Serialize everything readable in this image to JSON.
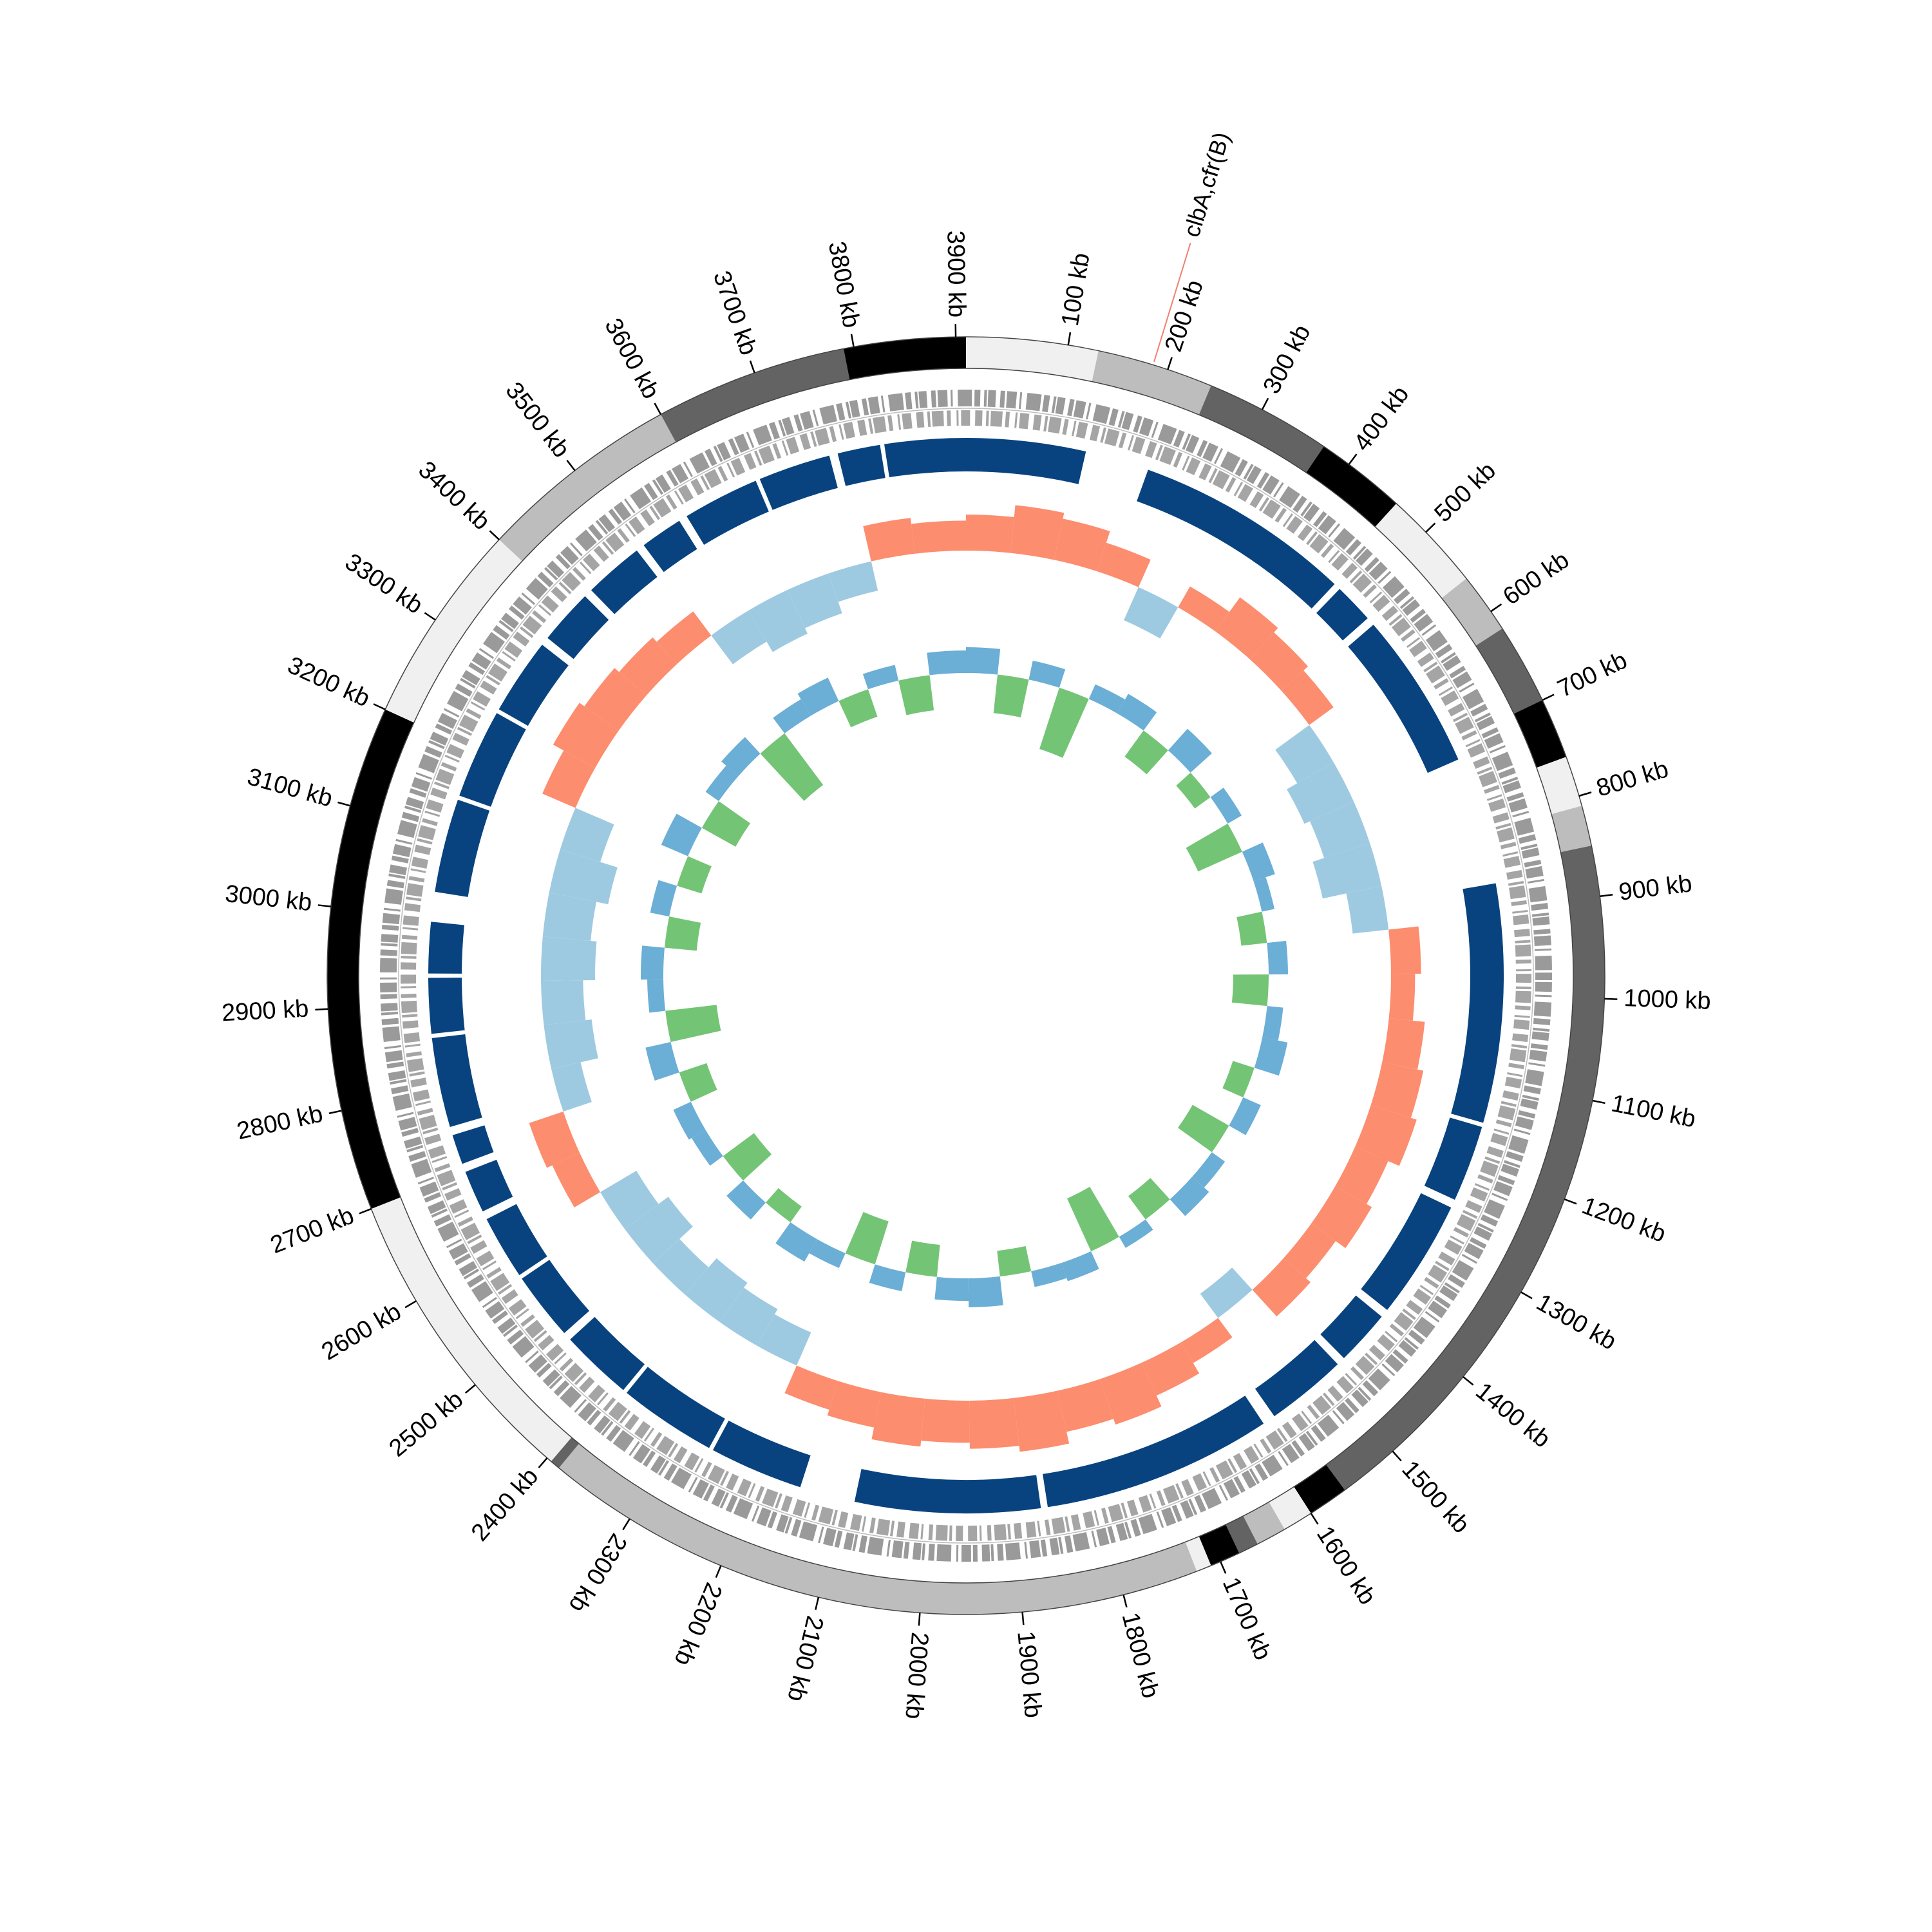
{
  "chart_data": {
    "type": "circular",
    "xlim": [
      0,
      3910
    ],
    "xticks": [
      {
        "value": 100,
        "label": "100 kb"
      },
      {
        "value": 200,
        "label": "200 kb"
      },
      {
        "value": 300,
        "label": "300 kb"
      },
      {
        "value": 400,
        "label": "400 kb"
      },
      {
        "value": 500,
        "label": "500 kb"
      },
      {
        "value": 600,
        "label": "600 kb"
      },
      {
        "value": 700,
        "label": "700 kb"
      },
      {
        "value": 800,
        "label": "800 kb"
      },
      {
        "value": 900,
        "label": "900 kb"
      },
      {
        "value": 1000,
        "label": "1000 kb"
      },
      {
        "value": 1100,
        "label": "1100 kb"
      },
      {
        "value": 1200,
        "label": "1200 kb"
      },
      {
        "value": 1300,
        "label": "1300 kb"
      },
      {
        "value": 1400,
        "label": "1400 kb"
      },
      {
        "value": 1500,
        "label": "1500 kb"
      },
      {
        "value": 1600,
        "label": "1600 kb"
      },
      {
        "value": 1700,
        "label": "1700 kb"
      },
      {
        "value": 1800,
        "label": "1800 kb"
      },
      {
        "value": 1900,
        "label": "1900 kb"
      },
      {
        "value": 2000,
        "label": "2000 kb"
      },
      {
        "value": 2100,
        "label": "2100 kb"
      },
      {
        "value": 2200,
        "label": "2200 kb"
      },
      {
        "value": 2300,
        "label": "2300 kb"
      },
      {
        "value": 2400,
        "label": "2400 kb"
      },
      {
        "value": 2500,
        "label": "2500 kb"
      },
      {
        "value": 2600,
        "label": "2600 kb"
      },
      {
        "value": 2700,
        "label": "2700 kb"
      },
      {
        "value": 2800,
        "label": "2800 kb"
      },
      {
        "value": 2900,
        "label": "2900 kb"
      },
      {
        "value": 3000,
        "label": "3000 kb"
      },
      {
        "value": 3100,
        "label": "3100 kb"
      },
      {
        "value": 3200,
        "label": "3200 kb"
      },
      {
        "value": 3300,
        "label": "3300 kb"
      },
      {
        "value": 3400,
        "label": "3400 kb"
      },
      {
        "value": 3500,
        "label": "3500 kb"
      },
      {
        "value": 3600,
        "label": "3600 kb"
      },
      {
        "value": 3700,
        "label": "3700 kb"
      },
      {
        "value": 3800,
        "label": "3800 kb"
      },
      {
        "value": 3900,
        "label": "3900 kb"
      }
    ],
    "contigs": {
      "starts": [
        0,
        130,
        245,
        370,
        460,
        560,
        620,
        700,
        760,
        810,
        850,
        1560,
        1600,
        1630,
        1660,
        1680,
        1710,
        1725,
        2385,
        2395,
        2700,
        3200,
        3400,
        3600,
        3790
      ],
      "ends": [
        130,
        245,
        370,
        460,
        560,
        620,
        700,
        760,
        810,
        850,
        1560,
        1600,
        1630,
        1660,
        1680,
        1710,
        1725,
        2385,
        2395,
        2700,
        3200,
        3400,
        3600,
        3790,
        3910
      ],
      "colors": [
        "#f0f0f0",
        "#bdbdbd",
        "#636363",
        "#000000",
        "#f0f0f0",
        "#bdbdbd",
        "#636363",
        "#000000",
        "#f0f0f0",
        "#bdbdbd",
        "#636363",
        "#000000",
        "#f0f0f0",
        "#bdbdbd",
        "#636363",
        "#000000",
        "#f0f0f0",
        "#bdbdbd",
        "#636363",
        "#f0f0f0",
        "#000000",
        "#f0f0f0",
        "#bdbdbd",
        "#636363",
        "#000000"
      ]
    },
    "blast_hits": {
      "color": "#08437f",
      "starts": [
        0,
        215,
        478,
        535,
        870,
        1155,
        1255,
        1405,
        1480,
        1590,
        1868,
        2150,
        2265,
        2385,
        2480,
        2565,
        2650,
        2710,
        2755,
        2865,
        2935,
        3030,
        3145,
        3255,
        3355,
        3430,
        3510,
        3570,
        3665,
        3760,
        3815
      ],
      "ends": [
        140,
        470,
        525,
        720,
        1150,
        1245,
        1395,
        1470,
        1575,
        1860,
        2085,
        2260,
        2380,
        2470,
        2560,
        2640,
        2700,
        2745,
        2860,
        2930,
        2995,
        3140,
        3250,
        3345,
        3420,
        3500,
        3560,
        3660,
        3750,
        3810,
        3910
      ]
    },
    "x": [
      0,
      65,
      130,
      195,
      260,
      325,
      390,
      455,
      520,
      585,
      650,
      715,
      780,
      845,
      910,
      975,
      1040,
      1105,
      1170,
      1235,
      1300,
      1365,
      1430,
      1495,
      1560,
      1625,
      1690,
      1755,
      1820,
      1885,
      1950,
      2015,
      2080,
      2145,
      2210,
      2275,
      2340,
      2405,
      2470,
      2535,
      2600,
      2665,
      2730,
      2795,
      2860,
      2925,
      2990,
      3055,
      3120,
      3185,
      3250,
      3315,
      3380,
      3445,
      3510,
      3575,
      3640,
      3705,
      3770,
      3835
    ],
    "gc_content": {
      "ylim": [
        -15,
        15
      ],
      "positive_color": "#fc8d6e",
      "negative_color": "#9ecae1",
      "values": [
        6,
        8,
        7,
        5,
        -6,
        4,
        7,
        6,
        5,
        -7,
        -9,
        -8,
        -10,
        -6,
        5,
        4,
        6,
        7,
        8,
        6,
        7,
        5,
        6,
        -5,
        4,
        6,
        8,
        7,
        9,
        8,
        7,
        8,
        6,
        5,
        -6,
        -7,
        -8,
        -6,
        -9,
        -7,
        5,
        6,
        -5,
        -8,
        -7,
        -9,
        -8,
        -10,
        -7,
        6,
        8,
        7,
        6,
        5,
        -6,
        -8,
        -7,
        -5,
        6,
        5
      ]
    },
    "gc_skew": {
      "ylim": [
        -0.3,
        0.3
      ],
      "positive_color": "#6baed6",
      "negative_color": "#74c476",
      "values": [
        0.08,
        -0.12,
        0.06,
        -0.2,
        0.05,
        0.07,
        -0.1,
        0.09,
        -0.06,
        0.05,
        -0.15,
        0.07,
        0.04,
        -0.08,
        0.06,
        -0.11,
        0.05,
        0.08,
        -0.07,
        0.06,
        -0.13,
        0.05,
        0.07,
        -0.09,
        0.04,
        -0.18,
        0.06,
        0.05,
        -0.08,
        0.09,
        0.07,
        -0.1,
        0.06,
        -0.14,
        0.05,
        0.08,
        -0.06,
        0.07,
        -0.12,
        0.05,
        0.06,
        -0.09,
        0.08,
        -0.16,
        0.05,
        0.07,
        -0.1,
        0.06,
        -0.08,
        0.09,
        -0.12,
        0.05,
        0.07,
        -0.2,
        0.06,
        0.08,
        -0.09,
        0.05,
        -0.11,
        0.07
      ]
    },
    "annotations": [
      {
        "label": "clbA,cfr(B)",
        "position": 185,
        "color": "#2b7bba",
        "line_color": "#f08070"
      }
    ]
  }
}
